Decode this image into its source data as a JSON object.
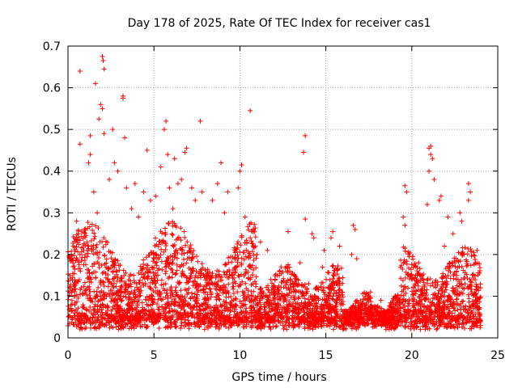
{
  "chart_data": {
    "type": "scatter",
    "title": "Day 178 of 2025, Rate Of TEC Index for receiver cas1",
    "xlabel": "GPS time / hours",
    "ylabel": "ROTI / TECUs",
    "xlim": [
      0,
      25
    ],
    "ylim": [
      0,
      0.7
    ],
    "xticks": [
      0,
      5,
      10,
      15,
      20,
      25
    ],
    "xtick_labels": [
      "0",
      "5",
      "10",
      "15",
      "20",
      "25"
    ],
    "yticks": [
      0,
      0.1,
      0.2,
      0.3,
      0.4,
      0.5,
      0.6,
      0.7
    ],
    "ytick_labels": [
      "0",
      "0.1",
      "0.2",
      "0.3",
      "0.4",
      "0.5",
      "0.6",
      "0.7"
    ],
    "grid": true,
    "marker": "+",
    "colors": {
      "series": "#ff0000",
      "grid": "#a0a0a0",
      "axis": "#000000"
    },
    "series": [
      {
        "name": "ROTI",
        "points": [
          [
            0.7,
            0.64
          ],
          [
            1.6,
            0.61
          ],
          [
            2.0,
            0.675
          ],
          [
            2.05,
            0.665
          ],
          [
            2.1,
            0.645
          ],
          [
            1.9,
            0.56
          ],
          [
            2.0,
            0.55
          ],
          [
            1.8,
            0.525
          ],
          [
            3.2,
            0.58
          ],
          [
            3.2,
            0.575
          ],
          [
            5.7,
            0.52
          ],
          [
            5.6,
            0.5
          ],
          [
            7.7,
            0.52
          ],
          [
            10.6,
            0.545
          ],
          [
            13.8,
            0.485
          ],
          [
            13.7,
            0.445
          ],
          [
            13.8,
            0.285
          ],
          [
            12.8,
            0.255
          ],
          [
            2.6,
            0.5
          ],
          [
            1.3,
            0.485
          ],
          [
            0.7,
            0.465
          ],
          [
            2.1,
            0.49
          ],
          [
            4.6,
            0.45
          ],
          [
            5.8,
            0.44
          ],
          [
            6.9,
            0.455
          ],
          [
            6.8,
            0.445
          ],
          [
            6.2,
            0.43
          ],
          [
            5.4,
            0.41
          ],
          [
            8.9,
            0.42
          ],
          [
            10.1,
            0.415
          ],
          [
            10.0,
            0.4
          ],
          [
            3.3,
            0.48
          ],
          [
            2.7,
            0.42
          ],
          [
            21.1,
            0.46
          ],
          [
            21.0,
            0.455
          ],
          [
            21.1,
            0.44
          ],
          [
            21.2,
            0.43
          ],
          [
            21.0,
            0.4
          ],
          [
            21.3,
            0.38
          ],
          [
            19.6,
            0.365
          ],
          [
            19.7,
            0.35
          ],
          [
            23.3,
            0.37
          ],
          [
            23.4,
            0.35
          ],
          [
            23.3,
            0.33
          ],
          [
            22.8,
            0.3
          ],
          [
            22.9,
            0.28
          ],
          [
            21.7,
            0.34
          ],
          [
            21.6,
            0.33
          ],
          [
            20.9,
            0.32
          ],
          [
            19.5,
            0.29
          ],
          [
            19.6,
            0.27
          ],
          [
            16.6,
            0.27
          ],
          [
            16.7,
            0.26
          ],
          [
            15.4,
            0.255
          ],
          [
            14.2,
            0.25
          ],
          [
            14.3,
            0.24
          ],
          [
            18.8,
            0.08
          ],
          [
            19.0,
            0.07
          ],
          [
            18.6,
            0.06
          ],
          [
            17.6,
            0.11
          ],
          [
            17.5,
            0.1
          ],
          [
            18.2,
            0.09
          ],
          [
            16.8,
            0.19
          ],
          [
            16.5,
            0.2
          ],
          [
            15.8,
            0.22
          ],
          [
            11.6,
            0.21
          ],
          [
            11.2,
            0.23
          ],
          [
            12.3,
            0.15
          ],
          [
            12.9,
            0.16
          ],
          [
            13.5,
            0.18
          ],
          [
            14.8,
            0.17
          ],
          [
            14.9,
            0.21
          ],
          [
            15.3,
            0.24
          ],
          [
            9.9,
            0.36
          ],
          [
            9.3,
            0.35
          ],
          [
            8.7,
            0.37
          ],
          [
            8.4,
            0.33
          ],
          [
            7.8,
            0.35
          ],
          [
            7.2,
            0.36
          ],
          [
            6.6,
            0.38
          ],
          [
            6.4,
            0.37
          ],
          [
            5.9,
            0.36
          ],
          [
            5.1,
            0.34
          ],
          [
            4.8,
            0.33
          ],
          [
            4.4,
            0.35
          ],
          [
            3.9,
            0.37
          ],
          [
            3.4,
            0.36
          ],
          [
            2.9,
            0.4
          ],
          [
            2.4,
            0.38
          ],
          [
            1.5,
            0.35
          ],
          [
            1.2,
            0.42
          ],
          [
            1.3,
            0.44
          ],
          [
            0.5,
            0.28
          ],
          [
            0.6,
            0.25
          ],
          [
            0.3,
            0.22
          ],
          [
            0.1,
            0.19
          ],
          [
            22.1,
            0.29
          ],
          [
            22.4,
            0.25
          ],
          [
            23.8,
            0.21
          ],
          [
            23.7,
            0.18
          ],
          [
            24.0,
            0.12
          ],
          [
            23.9,
            0.06
          ],
          [
            24.0,
            0.03
          ],
          [
            20.2,
            0.13
          ],
          [
            20.4,
            0.18
          ],
          [
            20.6,
            0.15
          ],
          [
            21.9,
            0.22
          ],
          [
            22.6,
            0.16
          ],
          [
            1.7,
            0.3
          ],
          [
            3.7,
            0.31
          ],
          [
            4.1,
            0.29
          ],
          [
            6.1,
            0.31
          ],
          [
            7.4,
            0.33
          ],
          [
            9.1,
            0.3
          ],
          [
            10.3,
            0.29
          ],
          [
            10.6,
            0.24
          ],
          [
            11.0,
            0.2
          ],
          [
            11.8,
            0.14
          ],
          [
            13.0,
            0.11
          ],
          [
            14.0,
            0.13
          ],
          [
            15.0,
            0.09
          ],
          [
            16.0,
            0.08
          ],
          [
            17.0,
            0.06
          ],
          [
            18.0,
            0.04
          ],
          [
            19.2,
            0.05
          ],
          [
            20.0,
            0.04
          ],
          [
            21.5,
            0.06
          ],
          [
            22.5,
            0.05
          ],
          [
            23.5,
            0.04
          ],
          [
            2.2,
            0.06
          ],
          [
            4.0,
            0.05
          ],
          [
            6.0,
            0.05
          ],
          [
            8.0,
            0.05
          ],
          [
            10.0,
            0.04
          ],
          [
            12.0,
            0.04
          ],
          [
            14.0,
            0.03
          ],
          [
            16.0,
            0.02
          ],
          [
            18.5,
            0.02
          ],
          [
            20.5,
            0.02
          ]
        ]
      }
    ]
  }
}
